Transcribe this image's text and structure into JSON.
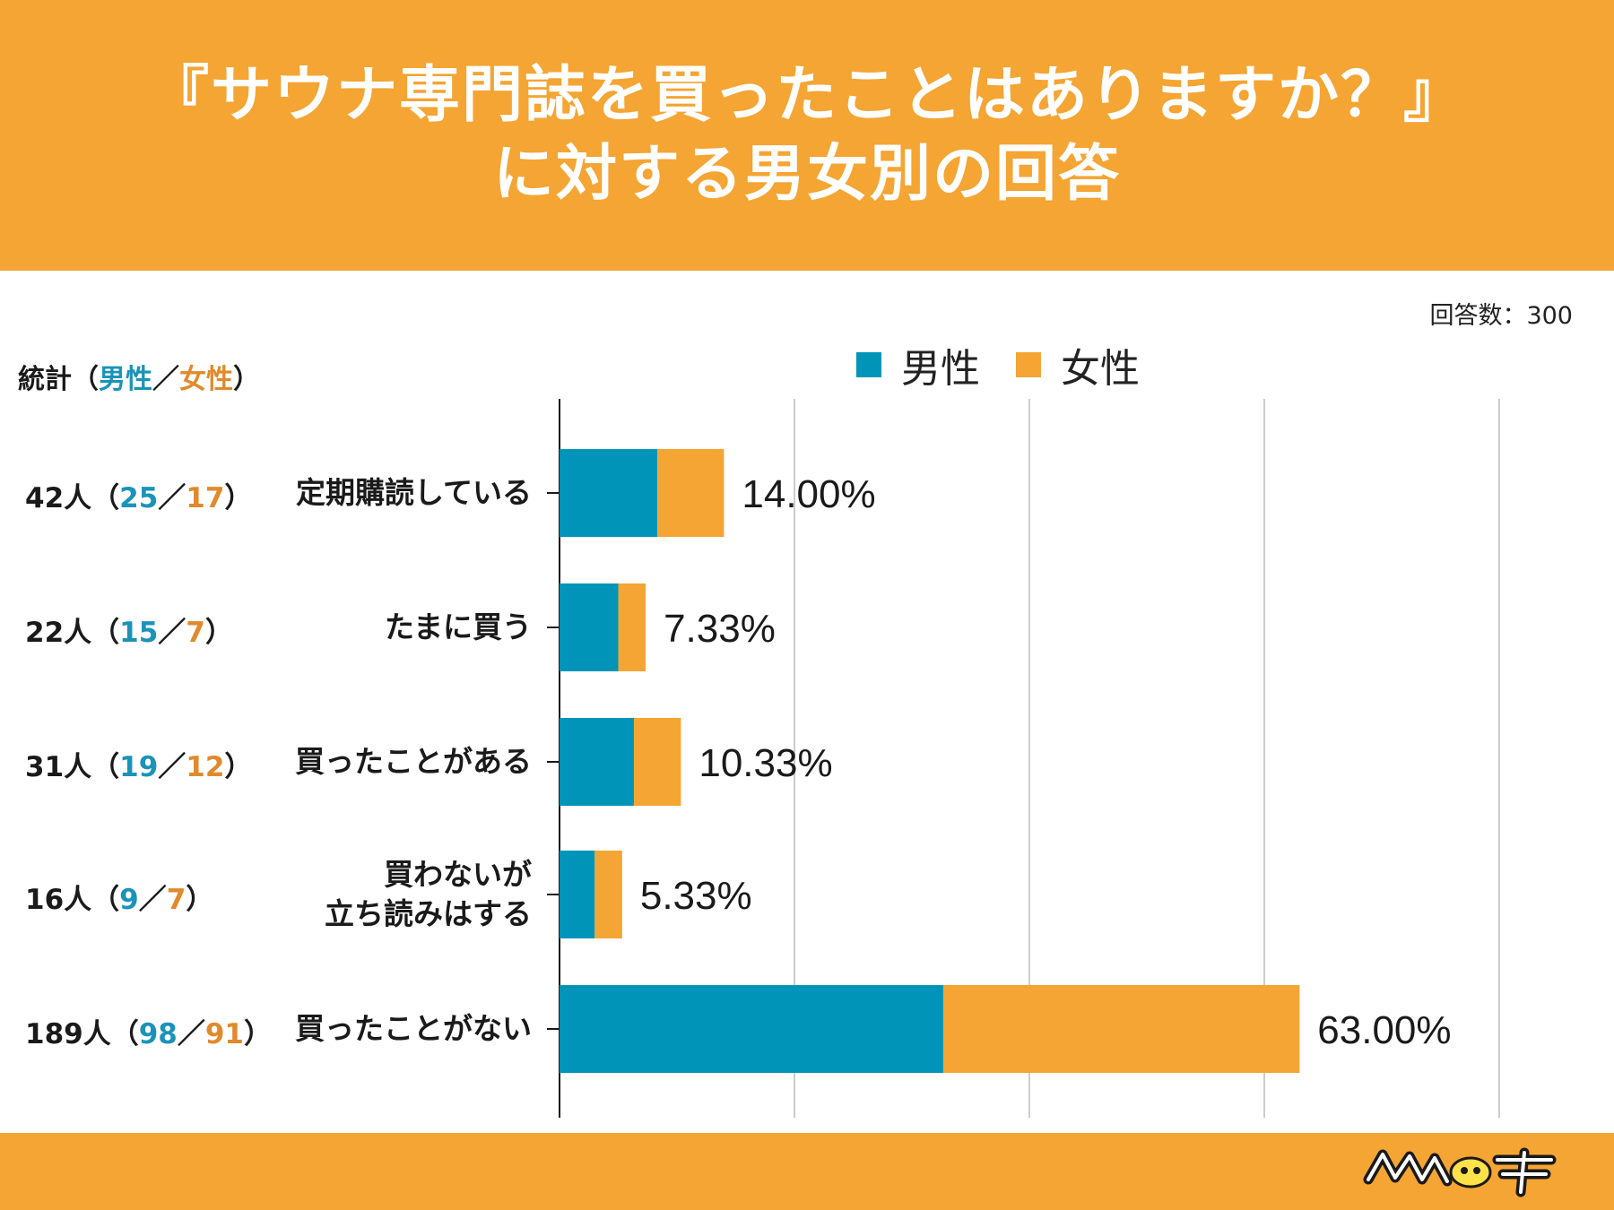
{
  "header": {
    "title_line1": "『サウナ専門誌を買ったことはありますか？』",
    "title_line2": "に対する男女別の回答"
  },
  "respondents": "回答数：300",
  "stats_header": {
    "prefix": "統計（",
    "male": "男性",
    "sep": "／",
    "female": "女性",
    "suffix": "）"
  },
  "logo_text": "サウナタイチ",
  "colors": {
    "male": "#0094b8",
    "female": "#f4a533",
    "accent": "#f4a533"
  },
  "chart_data": {
    "type": "bar",
    "orientation": "horizontal",
    "stacked": true,
    "title": "『サウナ専門誌を買ったことはありますか？』に対する男女別の回答",
    "total_respondents": 300,
    "xlim": [
      0,
      100
    ],
    "grid": true,
    "legend_position": "top",
    "series": [
      {
        "name": "男性",
        "color": "#0094b8",
        "counts": [
          25,
          15,
          19,
          9,
          98
        ]
      },
      {
        "name": "女性",
        "color": "#f4a533",
        "counts": [
          17,
          7,
          12,
          7,
          91
        ]
      }
    ],
    "categories": [
      {
        "label": "定期購読している",
        "label_lines": [
          "定期購読している"
        ],
        "total": "42",
        "male": "25",
        "female": "17",
        "percent_label": "14.00%"
      },
      {
        "label": "たまに買う",
        "label_lines": [
          "たまに買う"
        ],
        "total": "22",
        "male": "15",
        "female": "7",
        "percent_label": "7.33%"
      },
      {
        "label": "買ったことがある",
        "label_lines": [
          "買ったことがある"
        ],
        "total": "31",
        "male": "19",
        "female": "12",
        "percent_label": "10.33%"
      },
      {
        "label": "買わないが立ち読みはする",
        "label_lines": [
          "買わないが",
          "立ち読みはする"
        ],
        "total": "16",
        "male": "9",
        "female": "7",
        "percent_label": "5.33%"
      },
      {
        "label": "買ったことがない",
        "label_lines": [
          "買ったことがない"
        ],
        "total": "189",
        "male": "98",
        "female": "91",
        "percent_label": "63.00%"
      }
    ],
    "unit": "人"
  }
}
